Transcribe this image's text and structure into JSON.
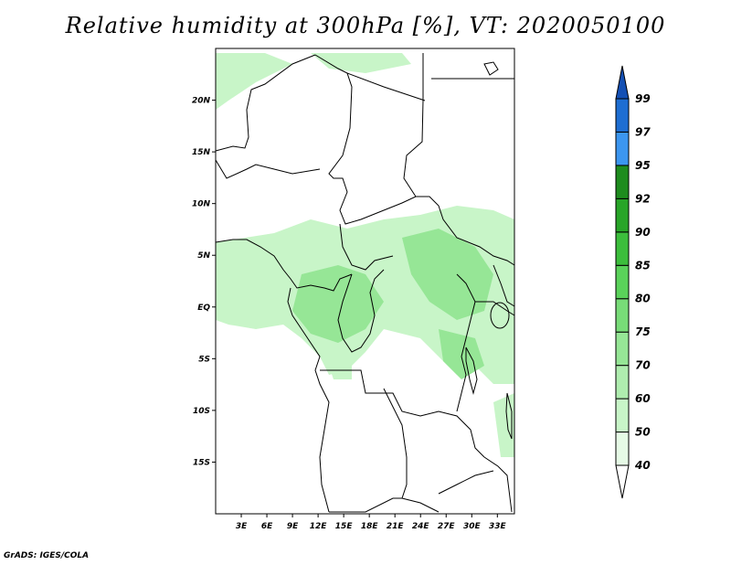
{
  "title": "Relative humidity at 300hPa [%], VT: 2020050100",
  "credit": "GrADS: IGES/COLA",
  "map": {
    "lat_labels": [
      "20N",
      "15N",
      "10N",
      "5N",
      "EQ",
      "5S",
      "10S",
      "15S"
    ],
    "lat_values": [
      20,
      15,
      10,
      5,
      0,
      -5,
      -10,
      -15
    ],
    "lon_labels": [
      "3E",
      "6E",
      "9E",
      "12E",
      "15E",
      "18E",
      "21E",
      "24E",
      "27E",
      "30E",
      "33E"
    ],
    "lon_values": [
      3,
      6,
      9,
      12,
      15,
      18,
      21,
      24,
      27,
      30,
      33
    ],
    "lon_range": [
      0,
      35
    ],
    "lat_range": [
      -20,
      25
    ]
  },
  "legend": {
    "levels": [
      "40",
      "50",
      "60",
      "70",
      "75",
      "80",
      "85",
      "90",
      "92",
      "95",
      "97",
      "99"
    ],
    "colors": [
      "#ffffff",
      "#e6fae6",
      "#c8f5c8",
      "#afedaf",
      "#96e696",
      "#78dc78",
      "#5ad25a",
      "#3cbe3c",
      "#28a528",
      "#1e8c1e",
      "#3c96f0",
      "#1e6ed2",
      "#1450b4"
    ]
  },
  "colors": {
    "light_green": "#c8f5c8",
    "mid_green": "#96e696",
    "border": "#000000"
  }
}
